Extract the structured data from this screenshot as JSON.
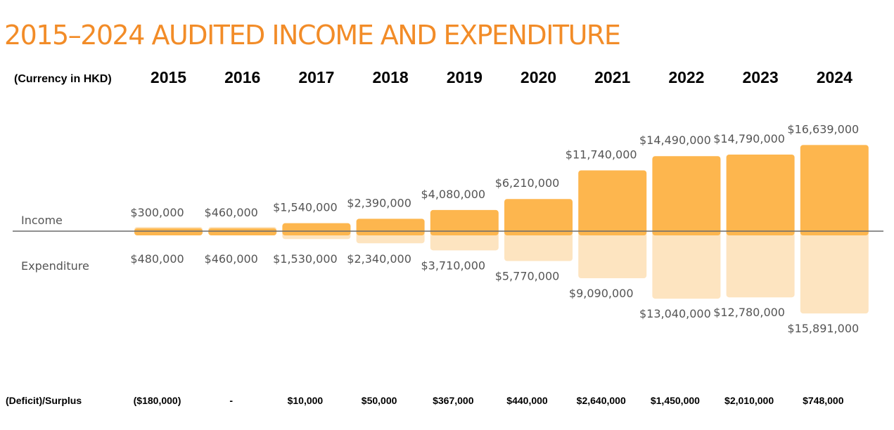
{
  "title": "2015–2024 AUDITED INCOME AND EXPENDITURE",
  "currency_label": "(Currency in HKD)",
  "row_labels": {
    "income": "Income",
    "expenditure": "Expenditure",
    "surplus": "(Deficit)/Surplus"
  },
  "colors": {
    "income": "#FDB64E",
    "expenditure": "#FDE4C0",
    "title": "#F28C28",
    "baseline": "#6b6b6b"
  },
  "chart_data": {
    "type": "bar",
    "title": "2015–2024 AUDITED INCOME AND EXPENDITURE",
    "categories": [
      "2015",
      "2016",
      "2017",
      "2018",
      "2019",
      "2020",
      "2021",
      "2022",
      "2023",
      "2024"
    ],
    "series": [
      {
        "name": "Income",
        "values": [
          300000,
          460000,
          1540000,
          2390000,
          4080000,
          6210000,
          11740000,
          14490000,
          14790000,
          16639000
        ],
        "labels": [
          "$300,000",
          "$460,000",
          "$1,540,000",
          "$2,390,000",
          "$4,080,000",
          "$6,210,000",
          "$11,740,000",
          "$14,490,000",
          "$14,790,000",
          "$16,639,000"
        ]
      },
      {
        "name": "Expenditure",
        "values": [
          480000,
          460000,
          1530000,
          2340000,
          3710000,
          5770000,
          9090000,
          13040000,
          12780000,
          15891000
        ],
        "labels": [
          "$480,000",
          "$460,000",
          "$1,530,000",
          "$2,340,000",
          "$3,710,000",
          "$5,770,000",
          "$9,090,000",
          "$13,040,000",
          "$12,780,000",
          "$15,891,000"
        ]
      },
      {
        "name": "(Deficit)/Surplus",
        "values": [
          -180000,
          0,
          10000,
          50000,
          367000,
          440000,
          2640000,
          1450000,
          2010000,
          748000
        ],
        "labels": [
          "($180,000)",
          "-",
          "$10,000",
          "$50,000",
          "$367,000",
          "$440,000",
          "$2,640,000",
          "$1,450,000",
          "$2,010,000",
          "$748,000"
        ]
      }
    ],
    "xlabel": "",
    "ylabel": "",
    "grid": false
  }
}
